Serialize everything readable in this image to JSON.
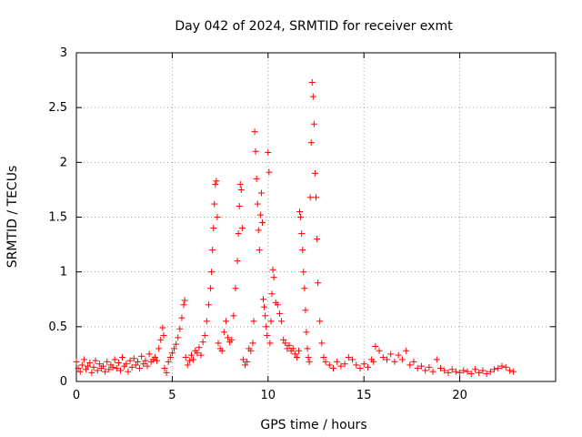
{
  "chart_data": {
    "type": "scatter",
    "title": "Day 042 of 2024, SRMTID for receiver exmt",
    "xlabel": "GPS time / hours",
    "ylabel": "SRMTID / TECUs",
    "xlim": [
      0,
      25
    ],
    "ylim": [
      0,
      3
    ],
    "xticks": [
      0,
      5,
      10,
      15,
      20
    ],
    "xtick_labels": [
      "0",
      "5",
      "10",
      "15",
      "20"
    ],
    "yticks": [
      0,
      0.5,
      1,
      1.5,
      2,
      2.5,
      3
    ],
    "ytick_labels": [
      "0",
      "0.5",
      "1",
      "1.5",
      "2",
      "2.5",
      "3"
    ],
    "grid": true,
    "marker": "+",
    "color": "#ff0000",
    "series": [
      {
        "name": "SRMTID",
        "x": [
          0.0,
          0.1,
          0.2,
          0.3,
          0.4,
          0.5,
          0.6,
          0.7,
          0.8,
          0.9,
          1.0,
          1.1,
          1.2,
          1.3,
          1.4,
          1.5,
          1.6,
          1.7,
          1.8,
          1.9,
          2.0,
          2.1,
          2.2,
          2.3,
          2.4,
          2.5,
          2.6,
          2.7,
          2.8,
          2.9,
          3.0,
          3.1,
          3.2,
          3.3,
          3.4,
          3.5,
          3.6,
          3.7,
          3.8,
          3.9,
          4.0,
          4.1,
          4.2,
          4.3,
          4.4,
          4.5,
          4.55,
          4.6,
          4.7,
          4.8,
          4.9,
          5.0,
          5.1,
          5.2,
          5.3,
          5.4,
          5.5,
          5.6,
          5.65,
          5.7,
          5.8,
          5.9,
          6.0,
          6.1,
          6.2,
          6.3,
          6.4,
          6.5,
          6.6,
          6.7,
          6.8,
          6.9,
          7.0,
          7.05,
          7.1,
          7.15,
          7.2,
          7.25,
          7.3,
          7.35,
          7.4,
          7.5,
          7.6,
          7.7,
          7.8,
          7.9,
          8.0,
          8.1,
          8.2,
          8.3,
          8.4,
          8.45,
          8.5,
          8.55,
          8.6,
          8.65,
          8.7,
          8.8,
          8.9,
          9.0,
          9.1,
          9.2,
          9.25,
          9.3,
          9.35,
          9.4,
          9.45,
          9.5,
          9.55,
          9.6,
          9.65,
          9.7,
          9.75,
          9.8,
          9.85,
          9.9,
          9.95,
          10.0,
          10.05,
          10.1,
          10.15,
          10.2,
          10.25,
          10.3,
          10.4,
          10.5,
          10.6,
          10.7,
          10.8,
          10.9,
          11.0,
          11.1,
          11.2,
          11.3,
          11.4,
          11.5,
          11.6,
          11.65,
          11.7,
          11.75,
          11.8,
          11.85,
          11.9,
          11.95,
          12.0,
          12.05,
          12.1,
          12.15,
          12.2,
          12.25,
          12.3,
          12.35,
          12.4,
          12.45,
          12.5,
          12.55,
          12.6,
          12.7,
          12.8,
          12.9,
          13.0,
          13.2,
          13.4,
          13.6,
          13.8,
          14.0,
          14.2,
          14.4,
          14.6,
          14.8,
          15.0,
          15.2,
          15.4,
          15.5,
          15.6,
          15.8,
          16.0,
          16.2,
          16.4,
          16.6,
          16.8,
          17.0,
          17.2,
          17.4,
          17.6,
          17.8,
          18.0,
          18.2,
          18.4,
          18.6,
          18.8,
          19.0,
          19.2,
          19.4,
          19.6,
          19.8,
          20.0,
          20.2,
          20.4,
          20.6,
          20.8,
          21.0,
          21.2,
          21.4,
          21.6,
          21.8,
          22.0,
          22.2,
          22.4,
          22.6,
          22.8
        ],
        "y": [
          0.18,
          0.12,
          0.09,
          0.15,
          0.2,
          0.11,
          0.14,
          0.17,
          0.08,
          0.13,
          0.19,
          0.1,
          0.16,
          0.12,
          0.14,
          0.09,
          0.18,
          0.11,
          0.15,
          0.13,
          0.2,
          0.12,
          0.17,
          0.1,
          0.22,
          0.14,
          0.16,
          0.09,
          0.19,
          0.13,
          0.21,
          0.15,
          0.18,
          0.12,
          0.23,
          0.16,
          0.19,
          0.14,
          0.25,
          0.18,
          0.2,
          0.22,
          0.19,
          0.3,
          0.38,
          0.49,
          0.42,
          0.12,
          0.08,
          0.18,
          0.22,
          0.26,
          0.3,
          0.34,
          0.4,
          0.48,
          0.58,
          0.7,
          0.74,
          0.22,
          0.15,
          0.19,
          0.24,
          0.2,
          0.28,
          0.26,
          0.31,
          0.24,
          0.36,
          0.42,
          0.55,
          0.7,
          0.85,
          1.0,
          1.2,
          1.4,
          1.62,
          1.8,
          1.83,
          1.5,
          0.35,
          0.3,
          0.28,
          0.45,
          0.55,
          0.4,
          0.36,
          0.38,
          0.6,
          0.85,
          1.1,
          1.35,
          1.6,
          1.8,
          1.75,
          1.4,
          0.2,
          0.15,
          0.18,
          0.3,
          0.28,
          0.35,
          0.55,
          2.28,
          2.1,
          1.85,
          1.62,
          1.38,
          1.2,
          1.52,
          1.72,
          1.45,
          0.75,
          0.68,
          0.6,
          0.5,
          0.42,
          2.09,
          1.91,
          0.35,
          0.55,
          0.8,
          1.02,
          0.95,
          0.72,
          0.7,
          0.62,
          0.55,
          0.38,
          0.35,
          0.3,
          0.33,
          0.28,
          0.3,
          0.25,
          0.22,
          0.28,
          1.55,
          1.5,
          1.35,
          1.2,
          1.0,
          0.85,
          0.65,
          0.45,
          0.3,
          0.22,
          0.18,
          1.68,
          2.18,
          2.73,
          2.6,
          2.35,
          1.9,
          1.68,
          1.3,
          0.9,
          0.55,
          0.35,
          0.22,
          0.18,
          0.15,
          0.12,
          0.18,
          0.14,
          0.16,
          0.22,
          0.2,
          0.15,
          0.12,
          0.16,
          0.13,
          0.2,
          0.18,
          0.32,
          0.28,
          0.22,
          0.2,
          0.25,
          0.18,
          0.24,
          0.2,
          0.28,
          0.15,
          0.18,
          0.12,
          0.14,
          0.1,
          0.13,
          0.09,
          0.2,
          0.12,
          0.1,
          0.08,
          0.11,
          0.09,
          0.08,
          0.1,
          0.09,
          0.07,
          0.11,
          0.08,
          0.1,
          0.07,
          0.09,
          0.11,
          0.12,
          0.14,
          0.13,
          0.1,
          0.09
        ]
      }
    ]
  }
}
